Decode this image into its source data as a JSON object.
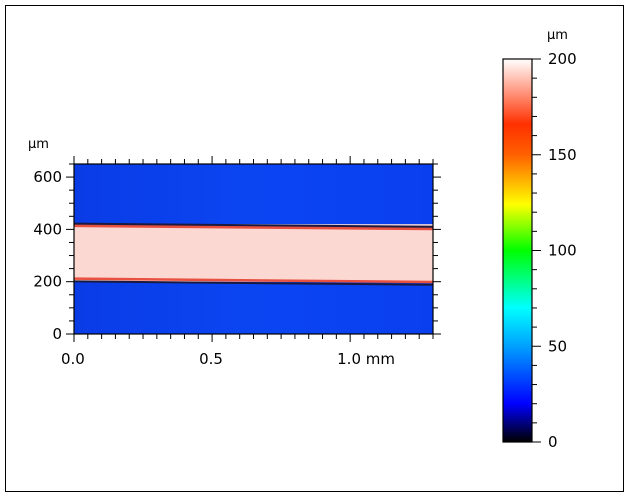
{
  "chart_data": {
    "type": "heatmap",
    "title": "",
    "x_axis": {
      "range": [
        0,
        1.3
      ],
      "major_ticks": [
        0.0,
        0.5,
        1.0
      ],
      "tick_labels": [
        "0.0",
        "0.5",
        "1.0 mm"
      ],
      "unit": "mm"
    },
    "y_axis": {
      "range": [
        0,
        650
      ],
      "major_ticks": [
        0,
        200,
        400,
        600
      ],
      "tick_labels": [
        "0",
        "200",
        "400",
        "600"
      ],
      "unit": "µm"
    },
    "colorbar": {
      "range": [
        0,
        200
      ],
      "ticks": [
        0,
        50,
        100,
        150,
        200
      ],
      "tick_labels": [
        "0",
        "50",
        "100",
        "150",
        "200"
      ],
      "unit": "µm",
      "colormap": [
        "#000000",
        "#0000ff",
        "#00ffff",
        "#00ff00",
        "#ffff00",
        "#ff8000",
        "#ff3000",
        "#ffffff"
      ]
    },
    "regions": [
      {
        "name": "lower-substrate",
        "y_range": [
          0,
          200
        ],
        "height_value": 20,
        "color": "#0a3ff0"
      },
      {
        "name": "raised-line",
        "y_range": [
          200,
          420
        ],
        "height_value": 195,
        "color": "#fbd8d2"
      },
      {
        "name": "upper-substrate",
        "y_range": [
          420,
          650
        ],
        "height_value": 20,
        "color": "#0a3ff0"
      }
    ],
    "edge_color": "#e85040"
  }
}
